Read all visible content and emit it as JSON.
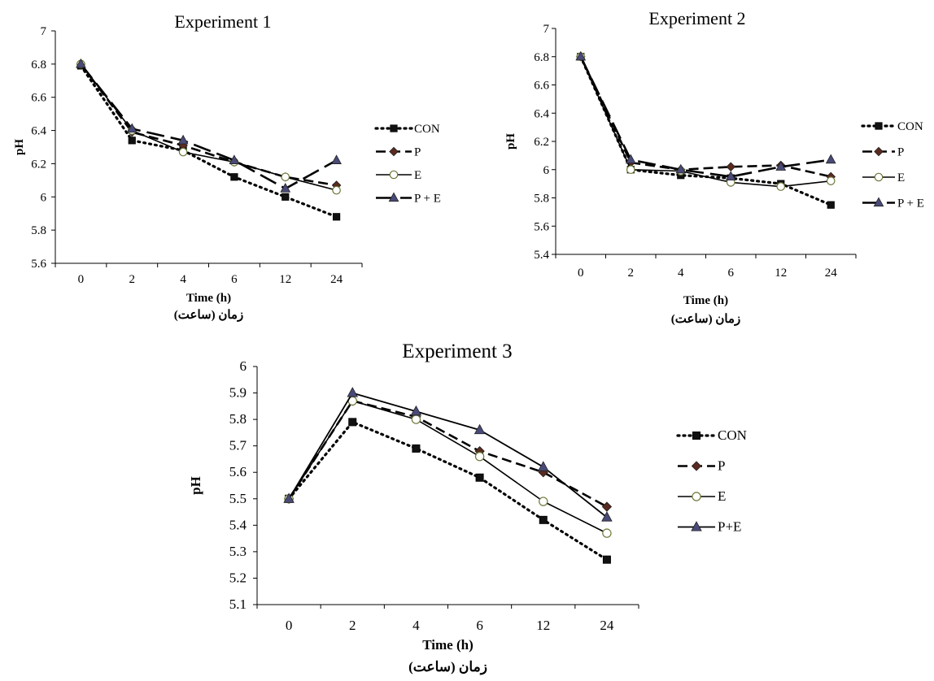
{
  "chart_data": [
    {
      "type": "line",
      "title": "Experiment  1",
      "xlabel": "Time (h)",
      "xlabel_sub": "زمان (ساعت)",
      "ylabel": "pH",
      "categories": [
        "0",
        "2",
        "4",
        "6",
        "12",
        "24"
      ],
      "ylim": [
        5.6,
        7
      ],
      "yticks": [
        "5.6",
        "5.8",
        "6",
        "6.2",
        "6.4",
        "6.6",
        "6.8",
        "7"
      ],
      "grid": false,
      "legend_position": "right",
      "series": [
        {
          "name": "CON",
          "values": [
            6.79,
            6.34,
            6.28,
            6.12,
            6.0,
            5.88
          ]
        },
        {
          "name": "P",
          "values": [
            6.8,
            6.39,
            6.31,
            6.21,
            6.12,
            6.07
          ]
        },
        {
          "name": "E",
          "values": [
            6.8,
            6.4,
            6.27,
            6.21,
            6.12,
            6.04
          ]
        },
        {
          "name": "P + E",
          "values": [
            6.8,
            6.41,
            6.34,
            6.22,
            6.05,
            6.22
          ]
        }
      ]
    },
    {
      "type": "line",
      "title": "Experiment  2",
      "xlabel": "Time (h)",
      "xlabel_sub": "زمان (ساعت)",
      "ylabel": "pH",
      "categories": [
        "0",
        "2",
        "4",
        "6",
        "12",
        "24"
      ],
      "ylim": [
        5.4,
        7
      ],
      "yticks": [
        "5.4",
        "5.6",
        "5.8",
        "6",
        "6.2",
        "6.4",
        "6.6",
        "6.8",
        "7"
      ],
      "grid": false,
      "legend_position": "right",
      "series": [
        {
          "name": "CON",
          "values": [
            6.8,
            6.0,
            5.96,
            5.94,
            5.9,
            5.75
          ]
        },
        {
          "name": "P",
          "values": [
            6.8,
            6.05,
            6.0,
            6.02,
            6.03,
            5.95
          ]
        },
        {
          "name": "E",
          "values": [
            6.8,
            6.0,
            5.99,
            5.91,
            5.88,
            5.92
          ]
        },
        {
          "name": "P + E",
          "values": [
            6.8,
            6.07,
            6.0,
            5.95,
            6.02,
            6.07
          ]
        }
      ]
    },
    {
      "type": "line",
      "title": "Experiment  3",
      "xlabel": "Time  (h)",
      "xlabel_sub": "زمان (ساعت)",
      "ylabel": "pH",
      "categories": [
        "0",
        "2",
        "4",
        "6",
        "12",
        "24"
      ],
      "ylim": [
        5.1,
        6
      ],
      "yticks": [
        "5.1",
        "5.2",
        "5.3",
        "5.4",
        "5.5",
        "5.6",
        "5.7",
        "5.8",
        "5.9",
        "6"
      ],
      "grid": false,
      "legend_position": "right",
      "series": [
        {
          "name": "CON",
          "values": [
            5.5,
            5.79,
            5.69,
            5.58,
            5.42,
            5.27
          ]
        },
        {
          "name": "P",
          "values": [
            5.5,
            5.87,
            5.81,
            5.68,
            5.6,
            5.47
          ]
        },
        {
          "name": "E",
          "values": [
            5.5,
            5.87,
            5.8,
            5.66,
            5.49,
            5.37
          ]
        },
        {
          "name": "P+E",
          "values": [
            5.5,
            5.9,
            5.83,
            5.76,
            5.62,
            5.43
          ]
        }
      ]
    }
  ]
}
